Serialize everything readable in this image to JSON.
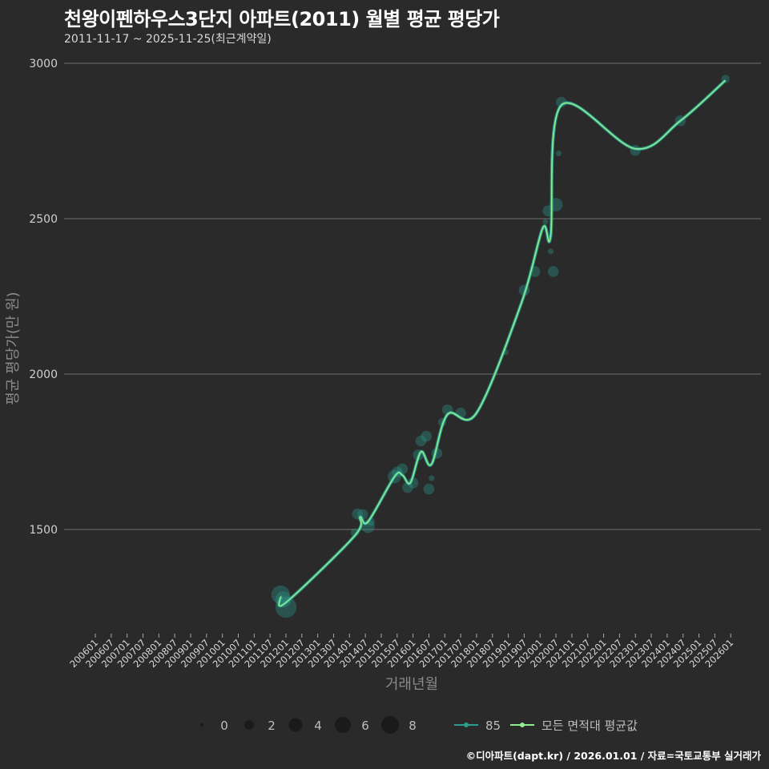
{
  "header": {
    "title": "천왕이펜하우스3단지 아파트(2011) 월별 평균 평당가",
    "subtitle": "2011-11-17 ~ 2025-11-25(최근계약일)"
  },
  "caption": "©디아파트(dapt.kr) / 2026.01.01 / 자료=국토교통부 실거래가",
  "colors": {
    "background": "#2a2a2b",
    "grid": "#707070",
    "series_85": "#2a9d8f",
    "series_avg": "#90ee90",
    "point_fill": "#2a9d8f"
  },
  "chart_data": {
    "type": "line",
    "title": "천왕이펜하우스3단지 아파트(2011) 월별 평균 평당가",
    "subtitle": "2011-11-17 ~ 2025-11-25(최근계약일)",
    "xlabel": "거래년월",
    "ylabel": "평균 평당가(만 원)",
    "ylim": [
      1180,
      3000
    ],
    "yticks": [
      1500,
      2000,
      2500,
      3000
    ],
    "grid": true,
    "legend_position": "bottom",
    "x_tick_labels": [
      "200601",
      "200607",
      "200701",
      "200707",
      "200801",
      "200807",
      "200901",
      "200907",
      "201001",
      "201007",
      "201101",
      "201107",
      "201201",
      "201207",
      "201301",
      "201307",
      "201401",
      "201407",
      "201501",
      "201507",
      "201601",
      "201607",
      "201701",
      "201707",
      "201801",
      "201807",
      "201901",
      "201907",
      "202001",
      "202007",
      "202101",
      "202107",
      "202201",
      "202207",
      "202301",
      "202307",
      "202401",
      "202407",
      "202501",
      "202507",
      "202601"
    ],
    "size_legend": {
      "title": "",
      "values": [
        0,
        2,
        4,
        6,
        8
      ]
    },
    "series": [
      {
        "name": "85",
        "type": "scatter+line",
        "points": [
          {
            "x": "201111",
            "y": 1290,
            "size": 6
          },
          {
            "x": "201112",
            "y": 1275,
            "size": 5
          },
          {
            "x": "201201",
            "y": 1250,
            "size": 7
          },
          {
            "x": "201403",
            "y": 1490,
            "size": 2
          },
          {
            "x": "201404",
            "y": 1550,
            "size": 3
          },
          {
            "x": "201406",
            "y": 1548,
            "size": 3
          },
          {
            "x": "201408",
            "y": 1510,
            "size": 4
          },
          {
            "x": "201409",
            "y": 1525,
            "size": 2
          },
          {
            "x": "201506",
            "y": 1670,
            "size": 4
          },
          {
            "x": "201507",
            "y": 1685,
            "size": 3
          },
          {
            "x": "201509",
            "y": 1695,
            "size": 3
          },
          {
            "x": "201511",
            "y": 1635,
            "size": 3
          },
          {
            "x": "201601",
            "y": 1650,
            "size": 3
          },
          {
            "x": "201603",
            "y": 1740,
            "size": 3
          },
          {
            "x": "201604",
            "y": 1785,
            "size": 3
          },
          {
            "x": "201606",
            "y": 1800,
            "size": 3
          },
          {
            "x": "201607",
            "y": 1630,
            "size": 3
          },
          {
            "x": "201608",
            "y": 1665,
            "size": 1
          },
          {
            "x": "201610",
            "y": 1745,
            "size": 3
          },
          {
            "x": "201612",
            "y": 1845,
            "size": 2
          },
          {
            "x": "201702",
            "y": 1885,
            "size": 3
          },
          {
            "x": "201707",
            "y": 1875,
            "size": 3
          },
          {
            "x": "201812",
            "y": 2070,
            "size": 1
          },
          {
            "x": "201907",
            "y": 2270,
            "size": 3
          },
          {
            "x": "201911",
            "y": 2330,
            "size": 3
          },
          {
            "x": "202003",
            "y": 2490,
            "size": 1
          },
          {
            "x": "202004",
            "y": 2525,
            "size": 3
          },
          {
            "x": "202005",
            "y": 2395,
            "size": 1
          },
          {
            "x": "202006",
            "y": 2330,
            "size": 3
          },
          {
            "x": "202007",
            "y": 2545,
            "size": 4
          },
          {
            "x": "202008",
            "y": 2710,
            "size": 1
          },
          {
            "x": "202009",
            "y": 2875,
            "size": 3
          },
          {
            "x": "202301",
            "y": 2720,
            "size": 3
          },
          {
            "x": "202406",
            "y": 2815,
            "size": 3
          },
          {
            "x": "202511",
            "y": 2950,
            "size": 2
          }
        ]
      },
      {
        "name": "모든 면적대 평균값",
        "type": "line",
        "points": [
          {
            "x": "201111",
            "y": 1285
          },
          {
            "x": "201201",
            "y": 1265
          },
          {
            "x": "201403",
            "y": 1480
          },
          {
            "x": "201405",
            "y": 1540
          },
          {
            "x": "201408",
            "y": 1525
          },
          {
            "x": "201506",
            "y": 1670
          },
          {
            "x": "201509",
            "y": 1675
          },
          {
            "x": "201512",
            "y": 1650
          },
          {
            "x": "201604",
            "y": 1750
          },
          {
            "x": "201608",
            "y": 1710
          },
          {
            "x": "201702",
            "y": 1870
          },
          {
            "x": "201801",
            "y": 1875
          },
          {
            "x": "201906",
            "y": 2230
          },
          {
            "x": "202002",
            "y": 2470
          },
          {
            "x": "202005",
            "y": 2445
          },
          {
            "x": "202009",
            "y": 2865
          },
          {
            "x": "202301",
            "y": 2725
          },
          {
            "x": "202406",
            "y": 2815
          },
          {
            "x": "202511",
            "y": 2945
          }
        ]
      }
    ]
  },
  "axes": {
    "xlabel": "거래년월",
    "ylabel": "평균 평당가(만 원)",
    "yticks": [
      "3000",
      "2500",
      "2000",
      "1500"
    ]
  },
  "legend": {
    "size_labels": [
      "0",
      "2",
      "4",
      "6",
      "8"
    ],
    "series_labels": [
      "85",
      "모든 면적대 평균값"
    ]
  }
}
